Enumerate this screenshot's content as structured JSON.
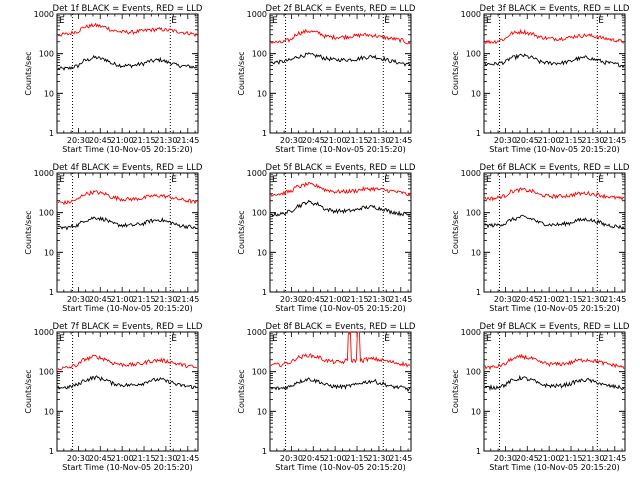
{
  "figure": {
    "ylabel": "Counts/sec",
    "xlabel": "Start Time (10-Nov-05 20:15:20)",
    "y_ticks": [
      "1",
      "10",
      "100",
      "1000"
    ],
    "x_ticks": [
      "20:30",
      "20:45",
      "21:00",
      "21:15",
      "21:30",
      "21:45"
    ],
    "event_marker": "E",
    "series_colors": {
      "events": "#000000",
      "lld": "#ff0000"
    }
  },
  "chart_data": [
    {
      "type": "line",
      "title": "Det 1f BLACK = Events, RED = LLD",
      "ylim": [
        1,
        1000
      ],
      "yscale": "log",
      "xlim": [
        "20:15:20",
        "21:52"
      ],
      "vlines": [
        "20:26",
        "21:33"
      ],
      "series": [
        {
          "color": "#000000",
          "values": [
            42,
            42,
            48,
            68,
            80,
            72,
            55,
            50,
            50,
            55,
            65,
            70,
            60,
            50,
            48,
            45
          ]
        },
        {
          "color": "#ff0000",
          "values": [
            300,
            310,
            360,
            480,
            520,
            470,
            380,
            350,
            350,
            370,
            400,
            410,
            390,
            360,
            330,
            300
          ]
        }
      ]
    },
    {
      "type": "line",
      "title": "Det 2f BLACK = Events, RED = LLD",
      "ylim": [
        1,
        1000
      ],
      "yscale": "log",
      "xlim": [
        "20:15:20",
        "21:52"
      ],
      "vlines": [
        "20:26",
        "21:33"
      ],
      "series": [
        {
          "color": "#000000",
          "values": [
            60,
            62,
            68,
            85,
            95,
            88,
            75,
            70,
            70,
            72,
            80,
            85,
            75,
            65,
            58,
            52
          ]
        },
        {
          "color": "#ff0000",
          "values": [
            200,
            190,
            220,
            330,
            370,
            340,
            270,
            260,
            265,
            280,
            300,
            290,
            260,
            240,
            220,
            180
          ]
        }
      ]
    },
    {
      "type": "line",
      "title": "Det 3f BLACK = Events, RED = LLD",
      "ylim": [
        1,
        1000
      ],
      "yscale": "log",
      "xlim": [
        "20:15:20",
        "21:52"
      ],
      "vlines": [
        "20:26",
        "21:33"
      ],
      "series": [
        {
          "color": "#000000",
          "values": [
            55,
            55,
            60,
            80,
            90,
            80,
            62,
            58,
            58,
            62,
            75,
            80,
            70,
            60,
            55,
            50
          ]
        },
        {
          "color": "#ff0000",
          "values": [
            200,
            200,
            230,
            330,
            360,
            320,
            260,
            240,
            240,
            255,
            280,
            290,
            270,
            240,
            220,
            200
          ]
        }
      ]
    },
    {
      "type": "line",
      "title": "Det 4f BLACK = Events, RED = LLD",
      "ylim": [
        1,
        1000
      ],
      "yscale": "log",
      "xlim": [
        "20:15:20",
        "21:52"
      ],
      "vlines": [
        "20:26",
        "21:33"
      ],
      "series": [
        {
          "color": "#000000",
          "values": [
            42,
            42,
            48,
            65,
            75,
            68,
            52,
            48,
            48,
            52,
            62,
            66,
            58,
            48,
            45,
            40
          ]
        },
        {
          "color": "#ff0000",
          "values": [
            180,
            180,
            210,
            300,
            330,
            300,
            240,
            220,
            220,
            230,
            260,
            270,
            250,
            220,
            200,
            180
          ]
        }
      ]
    },
    {
      "type": "line",
      "title": "Det 5f BLACK = Events, RED = LLD",
      "ylim": [
        1,
        1000
      ],
      "yscale": "log",
      "xlim": [
        "20:15:20",
        "21:52"
      ],
      "vlines": [
        "20:26",
        "21:33"
      ],
      "series": [
        {
          "color": "#000000",
          "values": [
            90,
            92,
            105,
            150,
            185,
            165,
            120,
            110,
            110,
            115,
            135,
            140,
            125,
            105,
            95,
            88
          ]
        },
        {
          "color": "#ff0000",
          "values": [
            290,
            300,
            340,
            460,
            520,
            470,
            370,
            340,
            340,
            355,
            390,
            400,
            380,
            350,
            320,
            280
          ]
        }
      ]
    },
    {
      "type": "line",
      "title": "Det 6f BLACK = Events, RED = LLD",
      "ylim": [
        1,
        1000
      ],
      "yscale": "log",
      "xlim": [
        "20:15:20",
        "21:52"
      ],
      "vlines": [
        "20:26",
        "21:33"
      ],
      "series": [
        {
          "color": "#000000",
          "values": [
            48,
            48,
            52,
            68,
            78,
            70,
            55,
            50,
            50,
            54,
            64,
            68,
            60,
            50,
            46,
            42
          ]
        },
        {
          "color": "#ff0000",
          "values": [
            230,
            230,
            260,
            350,
            380,
            350,
            280,
            260,
            260,
            270,
            300,
            310,
            290,
            260,
            240,
            220
          ]
        }
      ]
    },
    {
      "type": "line",
      "title": "Det 7f BLACK = Events, RED = LLD",
      "ylim": [
        1,
        1000
      ],
      "yscale": "log",
      "xlim": [
        "20:15:20",
        "21:52"
      ],
      "vlines": [
        "20:26",
        "21:33"
      ],
      "series": [
        {
          "color": "#000000",
          "values": [
            40,
            40,
            46,
            62,
            72,
            64,
            50,
            46,
            46,
            50,
            60,
            64,
            56,
            46,
            43,
            40
          ]
        },
        {
          "color": "#ff0000",
          "values": [
            120,
            125,
            145,
            210,
            240,
            210,
            165,
            150,
            150,
            160,
            185,
            195,
            180,
            155,
            140,
            125
          ]
        }
      ]
    },
    {
      "type": "line",
      "title": "Det 8f BLACK = Events, RED = LLD",
      "ylim": [
        1,
        1000
      ],
      "yscale": "log",
      "xlim": [
        "20:15:20",
        "21:52"
      ],
      "vlines": [
        "20:26",
        "21:33"
      ],
      "series": [
        {
          "color": "#000000",
          "values": [
            38,
            38,
            42,
            56,
            65,
            58,
            46,
            42,
            42,
            46,
            54,
            58,
            50,
            42,
            40,
            36
          ]
        },
        {
          "color": "#ff0000",
          "values": [
            150,
            150,
            170,
            230,
            260,
            235,
            190,
            175,
            175,
            1000,
            205,
            210,
            195,
            175,
            160,
            145
          ]
        }
      ]
    },
    {
      "type": "line",
      "title": "Det 9f BLACK = Events, RED = LLD",
      "ylim": [
        1,
        1000
      ],
      "yscale": "log",
      "xlim": [
        "20:15:20",
        "21:52"
      ],
      "vlines": [
        "20:26",
        "21:33"
      ],
      "series": [
        {
          "color": "#000000",
          "values": [
            40,
            40,
            45,
            60,
            70,
            62,
            48,
            44,
            44,
            48,
            58,
            62,
            54,
            45,
            42,
            38
          ]
        },
        {
          "color": "#ff0000",
          "values": [
            130,
            130,
            150,
            210,
            240,
            215,
            170,
            155,
            155,
            165,
            190,
            200,
            185,
            160,
            145,
            130
          ]
        }
      ]
    }
  ]
}
